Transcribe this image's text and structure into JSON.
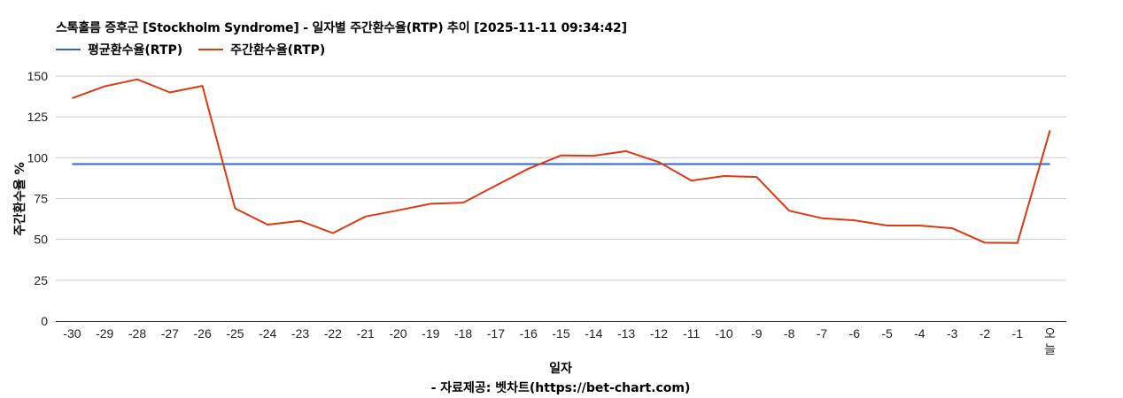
{
  "chart_data": {
    "type": "line",
    "title": "스톡홀름 증후군 [Stockholm Syndrome] - 일자별 주간환수율(RTP) 추이 [2025-11-11 09:34:42]",
    "xlabel": "일자",
    "ylabel": "주간환수율 %",
    "footer": "- 자료제공: 벳차트(https://bet-chart.com)",
    "ylim": [
      0,
      150
    ],
    "yticks": [
      0,
      25,
      50,
      75,
      100,
      125,
      150
    ],
    "grid": true,
    "legend_position": "top-left",
    "categories": [
      "-30",
      "-29",
      "-28",
      "-27",
      "-26",
      "-25",
      "-24",
      "-23",
      "-22",
      "-21",
      "-20",
      "-19",
      "-18",
      "-17",
      "-16",
      "-15",
      "-14",
      "-13",
      "-12",
      "-11",
      "-10",
      "-9",
      "-8",
      "-7",
      "-6",
      "-5",
      "-4",
      "-3",
      "-2",
      "-1",
      "오늘"
    ],
    "series": [
      {
        "name": "평균환수율(RTP)",
        "color": "#3366cc",
        "values": [
          96.1,
          96.1,
          96.1,
          96.1,
          96.1,
          96.1,
          96.1,
          96.1,
          96.1,
          96.1,
          96.1,
          96.1,
          96.1,
          96.1,
          96.1,
          96.1,
          96.1,
          96.1,
          96.1,
          96.1,
          96.1,
          96.1,
          96.1,
          96.1,
          96.1,
          96.1,
          96.1,
          96.1,
          96.1,
          96.1,
          96.1
        ]
      },
      {
        "name": "주간환수율(RTP)",
        "color": "#dc3912",
        "values": [
          136.4,
          143.7,
          148.0,
          140.0,
          144.0,
          69.0,
          59.0,
          61.3,
          53.8,
          64.0,
          67.8,
          71.8,
          72.5,
          83.0,
          93.3,
          101.4,
          101.2,
          104.0,
          97.3,
          86.0,
          88.8,
          88.2,
          67.5,
          63.0,
          61.7,
          58.5,
          58.5,
          56.8,
          48.0,
          47.8,
          116.8
        ]
      }
    ]
  }
}
